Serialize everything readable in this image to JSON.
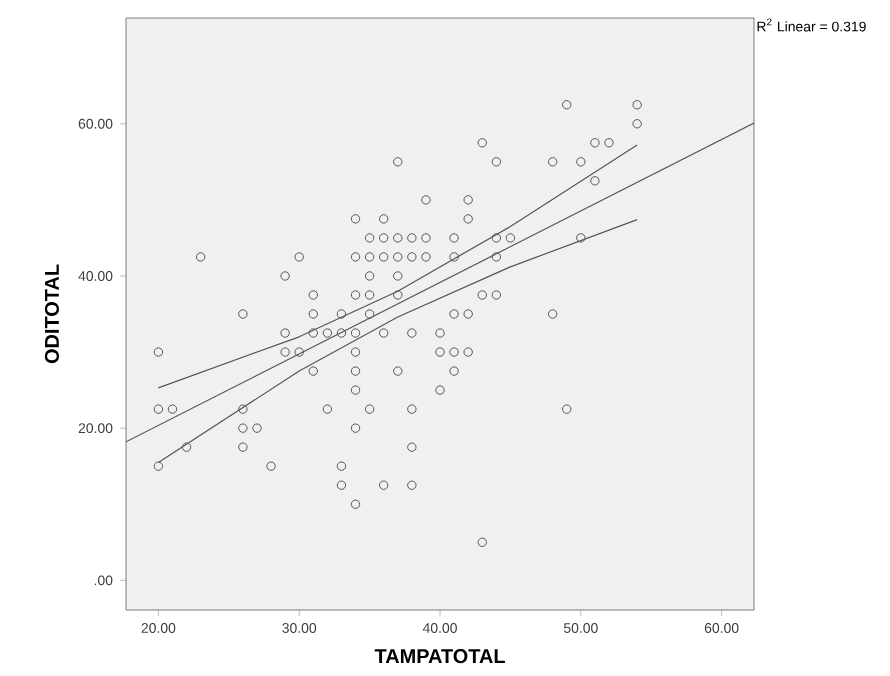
{
  "chart_data": {
    "type": "scatter",
    "xlabel": "TAMPATOTAL",
    "ylabel": "ODITOTAL",
    "annotations": [
      "R$^{2}$ Linear = 0.319"
    ],
    "xlim": [
      17.7,
      62.3
    ],
    "ylim": [
      -3.9,
      73.9
    ],
    "xticks": [
      {
        "value": 20,
        "label": "20.00"
      },
      {
        "value": 30,
        "label": "30.00"
      },
      {
        "value": 40,
        "label": "40.00"
      },
      {
        "value": 50,
        "label": "50.00"
      },
      {
        "value": 60,
        "label": "60.00"
      }
    ],
    "yticks": [
      {
        "value": 0,
        "label": ".00"
      },
      {
        "value": 20,
        "label": "20.00"
      },
      {
        "value": 40,
        "label": "40.00"
      },
      {
        "value": 60,
        "label": "60.00"
      }
    ],
    "grid": false,
    "legend": false,
    "series": [
      {
        "marker": "circle",
        "color": "#555555",
        "x": [
          49,
          54,
          54,
          43,
          51,
          52,
          37,
          44,
          48,
          50,
          51,
          39,
          42,
          34,
          36,
          42,
          35,
          36,
          37,
          38,
          39,
          41,
          44,
          45,
          50,
          23,
          30,
          34,
          35,
          36,
          37,
          38,
          39,
          41,
          44,
          29,
          35,
          37,
          31,
          34,
          35,
          37,
          43,
          44,
          26,
          31,
          33,
          35,
          41,
          42,
          48,
          29,
          31,
          32,
          33,
          34,
          36,
          38,
          40,
          20,
          29,
          30,
          34,
          40,
          41,
          42,
          31,
          34,
          37,
          41,
          34,
          40,
          20,
          21,
          26,
          32,
          35,
          38,
          49,
          26,
          27,
          34,
          22,
          26,
          38,
          20,
          28,
          33,
          33,
          36,
          38,
          34,
          43
        ],
        "values": [
          62.5,
          62.5,
          60,
          57.5,
          57.5,
          57.5,
          55,
          55,
          55,
          55,
          52.5,
          50,
          50,
          47.5,
          47.5,
          47.5,
          45,
          45,
          45,
          45,
          45,
          45,
          45,
          45,
          45,
          42.5,
          42.5,
          42.5,
          42.5,
          42.5,
          42.5,
          42.5,
          42.5,
          42.5,
          42.5,
          40,
          40,
          40,
          37.5,
          37.5,
          37.5,
          37.5,
          37.5,
          37.5,
          35,
          35,
          35,
          35,
          35,
          35,
          35,
          32.5,
          32.5,
          32.5,
          32.5,
          32.5,
          32.5,
          32.5,
          32.5,
          30,
          30,
          30,
          30,
          30,
          30,
          30,
          27.5,
          27.5,
          27.5,
          27.5,
          25,
          25,
          22.5,
          22.5,
          22.5,
          22.5,
          22.5,
          22.5,
          22.5,
          20,
          20,
          20,
          17.5,
          17.5,
          17.5,
          15,
          15,
          15,
          12.5,
          12.5,
          12.5,
          10,
          5
        ]
      },
      {
        "type": "line",
        "color": "#555555",
        "x": [
          17.7,
          62.3
        ],
        "values": [
          18.2,
          60.1
        ]
      },
      {
        "type": "line",
        "color": "#555555",
        "x": [
          20,
          30,
          37,
          45,
          54
        ],
        "values": [
          25.3,
          32.0,
          38.0,
          46.5,
          57.2
        ]
      },
      {
        "type": "line",
        "color": "#555555",
        "x": [
          20,
          30,
          37,
          45,
          54
        ],
        "values": [
          15.5,
          27.5,
          34.6,
          41.2,
          47.4
        ]
      }
    ]
  }
}
